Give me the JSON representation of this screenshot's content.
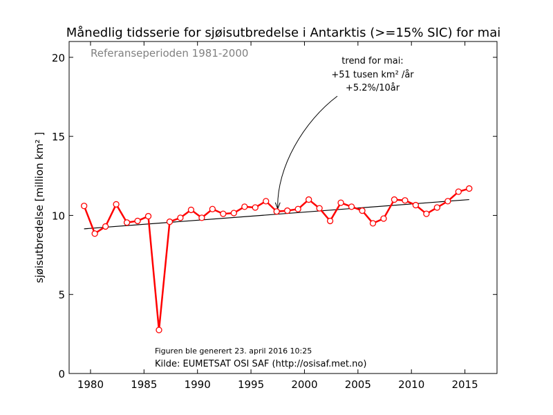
{
  "chart_data": {
    "type": "line",
    "title": "Månedlig tidsserie for sjøisutbredelse i Antarktis (>=15% SIC) for mai",
    "ylabel": "sjøisutbredelse [million km² ]",
    "xlabel": "",
    "xlim": [
      1978,
      2018
    ],
    "ylim": [
      0,
      21
    ],
    "x_ticks": [
      1980,
      1985,
      1990,
      1995,
      2000,
      2005,
      2010,
      2015
    ],
    "y_ticks": [
      0,
      5,
      10,
      15,
      20
    ],
    "grid": false,
    "legend": "none",
    "reference_period_text": "Referanseperioden 1981-2000",
    "annotation_lines": [
      "trend for mai:",
      "+51 tusen km² /år",
      "+5.2%/10år"
    ],
    "annotation_arrow_target": {
      "x": 1997.5,
      "y": 10.2
    },
    "generated_text": "Figuren ble generert 23. april 2016 10:25",
    "source_text": "Kilde: EUMETSAT OSI SAF (http://osisaf.met.no)",
    "series": [
      {
        "color": "#ff0000",
        "x": [
          1979.4,
          1980.4,
          1981.4,
          1982.4,
          1983.4,
          1984.4,
          1985.4,
          1986.4,
          1987.4,
          1988.4,
          1989.4,
          1990.4,
          1991.4,
          1992.4,
          1993.4,
          1994.4,
          1995.4,
          1996.4,
          1997.4,
          1998.4,
          1999.4,
          2000.4,
          2001.4,
          2002.4,
          2003.4,
          2004.4,
          2005.4,
          2006.4,
          2007.4,
          2008.4,
          2009.4,
          2010.4,
          2011.4,
          2012.4,
          2013.4,
          2014.4,
          2015.4
        ],
        "values": [
          10.6,
          8.85,
          9.3,
          10.7,
          9.55,
          9.65,
          9.95,
          2.75,
          9.6,
          9.85,
          10.35,
          9.85,
          10.4,
          10.1,
          10.15,
          10.55,
          10.5,
          10.9,
          10.25,
          10.3,
          10.4,
          11.0,
          10.45,
          9.65,
          10.8,
          10.55,
          10.3,
          9.5,
          9.8,
          11.0,
          10.95,
          10.65,
          10.1,
          10.5,
          10.9,
          11.5,
          11.7
        ]
      }
    ],
    "trend": {
      "color": "#000000",
      "x": [
        1979.4,
        2015.4
      ],
      "values": [
        9.15,
        11.0
      ]
    }
  }
}
